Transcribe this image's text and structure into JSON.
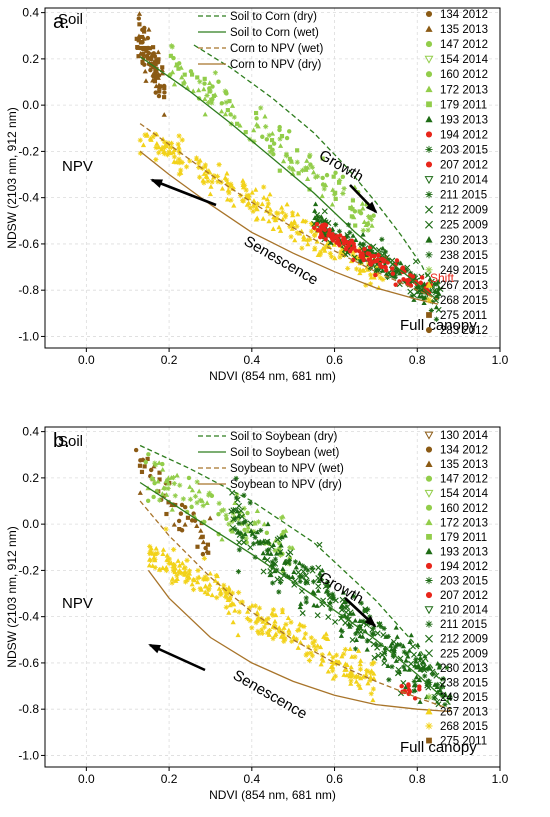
{
  "chart_data": [
    {
      "panel_label": "a.",
      "type": "scatter",
      "xlabel": "NDVI (854 nm, 681 nm)",
      "ylabel": "NDSW (2103 nm, 912 nm)",
      "xlim": [
        -0.1,
        1.0
      ],
      "ylim": [
        -1.05,
        0.42
      ],
      "x_ticks": [
        "0.0",
        "0.2",
        "0.4",
        "0.6",
        "0.8",
        "1.0"
      ],
      "y_ticks": [
        "0.4",
        "0.2",
        "0.0",
        "-0.2",
        "-0.4",
        "-0.6",
        "-0.8",
        "-1.0"
      ],
      "grid": true,
      "legend_lines_position": "top-center",
      "legend_points_position": "right",
      "annotations": [
        "Soil",
        "NPV",
        "Full canopy",
        "Growth",
        "Senescence",
        "Shift"
      ],
      "line_series": [
        {
          "name": "Soil to Corn (dry)",
          "style": "dashed",
          "color": "#2e7d1e",
          "points": [
            [
              0.26,
              0.26
            ],
            [
              0.35,
              0.16
            ],
            [
              0.45,
              0.03
            ],
            [
              0.55,
              -0.12
            ],
            [
              0.63,
              -0.27
            ],
            [
              0.7,
              -0.42
            ],
            [
              0.76,
              -0.56
            ],
            [
              0.81,
              -0.69
            ],
            [
              0.84,
              -0.8
            ]
          ]
        },
        {
          "name": "Soil to Corn (wet)",
          "style": "solid",
          "color": "#2e7d1e",
          "points": [
            [
              0.13,
              0.21
            ],
            [
              0.25,
              0.06
            ],
            [
              0.35,
              -0.08
            ],
            [
              0.45,
              -0.23
            ],
            [
              0.55,
              -0.38
            ],
            [
              0.65,
              -0.55
            ],
            [
              0.75,
              -0.7
            ],
            [
              0.84,
              -0.83
            ]
          ]
        },
        {
          "name": "Corn to NPV (wet)",
          "style": "dashed",
          "color": "#a8742a",
          "points": [
            [
              0.13,
              -0.08
            ],
            [
              0.2,
              -0.17
            ],
            [
              0.3,
              -0.3
            ],
            [
              0.4,
              -0.42
            ],
            [
              0.5,
              -0.53
            ],
            [
              0.6,
              -0.63
            ],
            [
              0.7,
              -0.72
            ],
            [
              0.8,
              -0.8
            ],
            [
              0.85,
              -0.84
            ]
          ]
        },
        {
          "name": "Corn to NPV (dry)",
          "style": "solid",
          "color": "#a8742a",
          "points": [
            [
              0.13,
              -0.2
            ],
            [
              0.2,
              -0.3
            ],
            [
              0.3,
              -0.43
            ],
            [
              0.4,
              -0.55
            ],
            [
              0.5,
              -0.64
            ],
            [
              0.6,
              -0.72
            ],
            [
              0.7,
              -0.79
            ],
            [
              0.8,
              -0.84
            ],
            [
              0.85,
              -0.86
            ]
          ]
        }
      ],
      "series": [
        {
          "name": "134 2012",
          "marker": "circle",
          "color": "#8b5a14"
        },
        {
          "name": "135 2013",
          "marker": "triangle",
          "color": "#8b5a14"
        },
        {
          "name": "147 2012",
          "marker": "circle",
          "color": "#92cd4a"
        },
        {
          "name": "154 2014",
          "marker": "triangle-open-down",
          "color": "#92cd4a"
        },
        {
          "name": "160 2012",
          "marker": "circle",
          "color": "#92cd4a"
        },
        {
          "name": "172 2013",
          "marker": "triangle",
          "color": "#92cd4a"
        },
        {
          "name": "179 2011",
          "marker": "square",
          "color": "#92cd4a"
        },
        {
          "name": "193 2013",
          "marker": "triangle",
          "color": "#1d6b14"
        },
        {
          "name": "194 2012",
          "marker": "circle",
          "color": "#e8251a"
        },
        {
          "name": "203 2015",
          "marker": "asterisk",
          "color": "#1d6b14"
        },
        {
          "name": "207 2012",
          "marker": "circle",
          "color": "#e8251a"
        },
        {
          "name": "210 2014",
          "marker": "triangle-open-down",
          "color": "#1d6b14"
        },
        {
          "name": "211 2015",
          "marker": "asterisk",
          "color": "#1d6b14"
        },
        {
          "name": "212 2009",
          "marker": "x",
          "color": "#1d6b14"
        },
        {
          "name": "225 2009",
          "marker": "x",
          "color": "#1d6b14"
        },
        {
          "name": "230 2013",
          "marker": "triangle",
          "color": "#1d6b14"
        },
        {
          "name": "238 2015",
          "marker": "asterisk",
          "color": "#1d6b14"
        },
        {
          "name": "249 2015",
          "marker": "asterisk",
          "color": "#92cd4a"
        },
        {
          "name": "267 2013",
          "marker": "triangle",
          "color": "#f2d21a"
        },
        {
          "name": "268 2015",
          "marker": "asterisk",
          "color": "#f2d21a"
        },
        {
          "name": "275 2011",
          "marker": "square",
          "color": "#8b5a14"
        },
        {
          "name": "283 2012",
          "marker": "circle",
          "color": "#8b5a14"
        }
      ]
    },
    {
      "panel_label": "b.",
      "type": "scatter",
      "xlabel": "NDVI (854 nm, 681 nm)",
      "ylabel": "NDSW (2103 nm, 912 nm)",
      "xlim": [
        -0.1,
        1.0
      ],
      "ylim": [
        -1.05,
        0.42
      ],
      "x_ticks": [
        "0.0",
        "0.2",
        "0.4",
        "0.6",
        "0.8",
        "1.0"
      ],
      "y_ticks": [
        "0.4",
        "0.2",
        "0.0",
        "-0.2",
        "-0.4",
        "-0.6",
        "-0.8",
        "-1.0"
      ],
      "grid": true,
      "legend_lines_position": "top-center",
      "legend_points_position": "right",
      "annotations": [
        "Soil",
        "NPV",
        "Full canopy",
        "Growth",
        "Senescence"
      ],
      "line_series": [
        {
          "name": "Soil to Soybean (dry)",
          "style": "dashed",
          "color": "#2e7d1e",
          "points": [
            [
              0.13,
              0.34
            ],
            [
              0.25,
              0.24
            ],
            [
              0.4,
              0.1
            ],
            [
              0.55,
              -0.08
            ],
            [
              0.7,
              -0.33
            ],
            [
              0.8,
              -0.53
            ],
            [
              0.86,
              -0.68
            ],
            [
              0.88,
              -0.8
            ]
          ]
        },
        {
          "name": "Soil to Soybean (wet)",
          "style": "solid",
          "color": "#2e7d1e",
          "points": [
            [
              0.13,
              0.18
            ],
            [
              0.25,
              0.04
            ],
            [
              0.4,
              -0.13
            ],
            [
              0.55,
              -0.31
            ],
            [
              0.7,
              -0.5
            ],
            [
              0.8,
              -0.65
            ],
            [
              0.88,
              -0.78
            ]
          ]
        },
        {
          "name": "Soybean to NPV (wet)",
          "style": "dashed",
          "color": "#a8742a",
          "points": [
            [
              0.13,
              0.1
            ],
            [
              0.2,
              -0.05
            ],
            [
              0.3,
              -0.23
            ],
            [
              0.4,
              -0.38
            ],
            [
              0.5,
              -0.5
            ],
            [
              0.6,
              -0.6
            ],
            [
              0.7,
              -0.68
            ],
            [
              0.8,
              -0.75
            ],
            [
              0.88,
              -0.8
            ]
          ]
        },
        {
          "name": "Soybean to NPV (dry)",
          "style": "solid",
          "color": "#a8742a",
          "points": [
            [
              0.15,
              -0.2
            ],
            [
              0.2,
              -0.32
            ],
            [
              0.3,
              -0.49
            ],
            [
              0.4,
              -0.6
            ],
            [
              0.5,
              -0.68
            ],
            [
              0.6,
              -0.74
            ],
            [
              0.7,
              -0.78
            ],
            [
              0.8,
              -0.8
            ],
            [
              0.88,
              -0.81
            ]
          ]
        }
      ],
      "series": [
        {
          "name": "130 2014",
          "marker": "triangle-open-down",
          "color": "#8b5a14"
        },
        {
          "name": "134 2012",
          "marker": "circle",
          "color": "#8b5a14"
        },
        {
          "name": "135 2013",
          "marker": "triangle",
          "color": "#8b5a14"
        },
        {
          "name": "147 2012",
          "marker": "circle",
          "color": "#92cd4a"
        },
        {
          "name": "154 2014",
          "marker": "triangle-open-down",
          "color": "#92cd4a"
        },
        {
          "name": "160 2012",
          "marker": "circle",
          "color": "#92cd4a"
        },
        {
          "name": "172 2013",
          "marker": "triangle",
          "color": "#92cd4a"
        },
        {
          "name": "179 2011",
          "marker": "square",
          "color": "#92cd4a"
        },
        {
          "name": "193 2013",
          "marker": "triangle",
          "color": "#1d6b14"
        },
        {
          "name": "194 2012",
          "marker": "circle",
          "color": "#e8251a"
        },
        {
          "name": "203 2015",
          "marker": "asterisk",
          "color": "#1d6b14"
        },
        {
          "name": "207 2012",
          "marker": "circle",
          "color": "#e8251a"
        },
        {
          "name": "210 2014",
          "marker": "triangle-open-down",
          "color": "#1d6b14"
        },
        {
          "name": "211 2015",
          "marker": "asterisk",
          "color": "#1d6b14"
        },
        {
          "name": "212 2009",
          "marker": "x",
          "color": "#1d6b14"
        },
        {
          "name": "225 2009",
          "marker": "x",
          "color": "#1d6b14"
        },
        {
          "name": "230 2013",
          "marker": "triangle",
          "color": "#1d6b14"
        },
        {
          "name": "238 2015",
          "marker": "asterisk",
          "color": "#1d6b14"
        },
        {
          "name": "249 2015",
          "marker": "asterisk",
          "color": "#92cd4a"
        },
        {
          "name": "267 2013",
          "marker": "triangle",
          "color": "#f2d21a"
        },
        {
          "name": "268 2015",
          "marker": "asterisk",
          "color": "#f2d21a"
        },
        {
          "name": "275 2011",
          "marker": "square",
          "color": "#8b5a14"
        }
      ]
    }
  ]
}
